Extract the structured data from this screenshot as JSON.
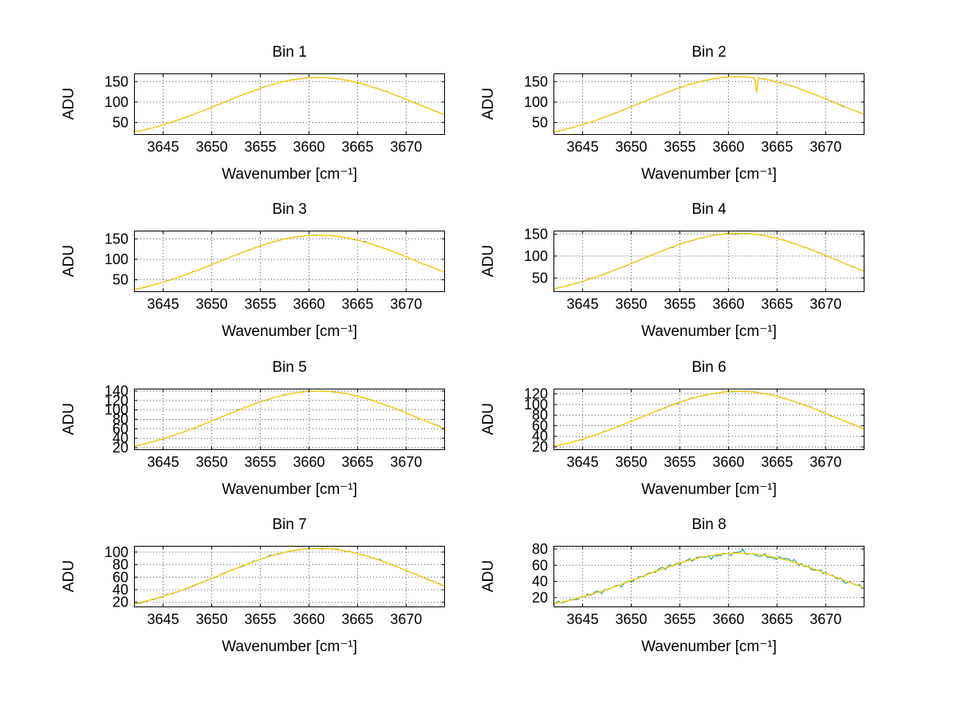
{
  "figure": {
    "background": "#ffffff"
  },
  "chart_data": {
    "type": "line",
    "layout": "4x2-grid",
    "shared": {
      "xlabel": "Wavenumber [cm⁻¹]",
      "ylabel": "ADU",
      "xlim": [
        3642,
        3674
      ],
      "xticks": [
        3645,
        3650,
        3655,
        3660,
        3665,
        3670
      ],
      "grid": true,
      "grid_color": "#555555",
      "axis_color": "#000000",
      "series_styles": [
        {
          "name": "measured-spectrum",
          "color": "#0d9488"
        },
        {
          "name": "smooth-overlay",
          "color": "#fdca01"
        }
      ],
      "x": [
        3642,
        3643,
        3644,
        3645,
        3646,
        3647,
        3648,
        3649,
        3650,
        3651,
        3652,
        3653,
        3654,
        3655,
        3656,
        3657,
        3658,
        3659,
        3660,
        3661,
        3662,
        3663,
        3664,
        3665,
        3666,
        3667,
        3668,
        3669,
        3670,
        3671,
        3672,
        3673,
        3674
      ]
    },
    "subplots": [
      {
        "title": "Bin 1",
        "ylim": [
          20,
          170
        ],
        "yticks": [
          50,
          100,
          150
        ],
        "noise": 0.8,
        "y": [
          26.3,
          31.7,
          37.7,
          44.5,
          52.0,
          60.0,
          68.7,
          77.9,
          87.4,
          97.0,
          106.7,
          116.2,
          125.2,
          133.6,
          141.2,
          147.7,
          153.0,
          156.8,
          159.2,
          160.0,
          159.2,
          156.8,
          153.0,
          147.7,
          141.2,
          133.6,
          125.2,
          116.2,
          106.7,
          97.0,
          87.4,
          77.9,
          68.7
        ]
      },
      {
        "title": "Bin 2",
        "ylim": [
          20,
          170
        ],
        "yticks": [
          50,
          100,
          150
        ],
        "noise": 0.8,
        "x": [
          3642,
          3643,
          3644,
          3645,
          3646,
          3647,
          3648,
          3649,
          3650,
          3651,
          3652,
          3653,
          3654,
          3655,
          3656,
          3657,
          3658,
          3659,
          3660,
          3661,
          3662,
          3662.7,
          3662.9,
          3663.1,
          3664,
          3665,
          3666,
          3667,
          3668,
          3669,
          3670,
          3671,
          3672,
          3673,
          3674
        ],
        "y": [
          26.6,
          32.1,
          38.2,
          45.1,
          52.6,
          60.8,
          69.6,
          78.9,
          88.5,
          98.2,
          108.0,
          117.7,
          126.8,
          135.3,
          143.0,
          149.5,
          154.9,
          158.8,
          161.2,
          162.0,
          161.2,
          159.5,
          123.0,
          158.5,
          154.9,
          149.5,
          143.0,
          135.3,
          126.8,
          117.7,
          108.0,
          98.2,
          88.5,
          78.9,
          69.6
        ]
      },
      {
        "title": "Bin 3",
        "ylim": [
          20,
          170
        ],
        "yticks": [
          50,
          100,
          150
        ],
        "noise": 0.8,
        "y": [
          26.2,
          31.5,
          37.5,
          44.2,
          51.6,
          59.7,
          68.3,
          77.4,
          86.8,
          96.4,
          106.0,
          115.5,
          124.4,
          132.8,
          140.3,
          146.8,
          152.0,
          155.8,
          158.2,
          159.0,
          158.2,
          155.8,
          152.0,
          146.8,
          140.3,
          132.8,
          124.4,
          115.5,
          106.0,
          96.4,
          86.8,
          77.4,
          68.3
        ]
      },
      {
        "title": "Bin 4",
        "ylim": [
          18,
          158
        ],
        "yticks": [
          50,
          100,
          150
        ],
        "noise": 0.8,
        "y": [
          25.0,
          30.1,
          35.8,
          42.3,
          49.4,
          57.0,
          65.3,
          74.0,
          83.0,
          92.2,
          101.4,
          110.4,
          119.0,
          126.9,
          134.1,
          140.3,
          145.3,
          149.0,
          151.2,
          152.0,
          151.2,
          149.0,
          145.3,
          140.3,
          134.1,
          126.9,
          119.0,
          110.4,
          101.4,
          92.2,
          83.0,
          74.0,
          65.3
        ]
      },
      {
        "title": "Bin 5",
        "ylim": [
          15,
          145
        ],
        "yticks": [
          20,
          40,
          60,
          80,
          100,
          120,
          140
        ],
        "noise": 0.8,
        "y": [
          23.0,
          27.7,
          33.0,
          38.9,
          45.5,
          52.5,
          60.1,
          68.2,
          76.5,
          84.9,
          93.4,
          101.7,
          109.6,
          116.9,
          123.6,
          129.2,
          133.8,
          137.2,
          139.3,
          140.0,
          139.3,
          137.2,
          133.8,
          129.2,
          123.6,
          116.9,
          109.6,
          101.7,
          93.4,
          84.9,
          76.5,
          68.2,
          60.1
        ]
      },
      {
        "title": "Bin 6",
        "ylim": [
          14,
          130
        ],
        "yticks": [
          20,
          40,
          60,
          80,
          100,
          120
        ],
        "noise": 0.8,
        "y": [
          20.6,
          24.8,
          29.5,
          34.8,
          40.6,
          46.9,
          53.7,
          60.9,
          68.3,
          75.8,
          83.4,
          90.8,
          97.8,
          104.4,
          110.3,
          115.4,
          119.5,
          122.5,
          124.4,
          125.0,
          124.4,
          122.5,
          119.5,
          115.4,
          110.3,
          104.4,
          97.8,
          90.8,
          83.4,
          75.8,
          68.3,
          60.9,
          53.7
        ]
      },
      {
        "title": "Bin 7",
        "ylim": [
          12,
          110
        ],
        "yticks": [
          20,
          40,
          60,
          80,
          100
        ],
        "noise": 0.8,
        "y": [
          17.4,
          21.0,
          25.0,
          29.5,
          34.4,
          39.8,
          45.5,
          51.6,
          57.9,
          64.3,
          70.7,
          77.0,
          83.0,
          88.5,
          93.5,
          97.8,
          101.3,
          103.9,
          105.5,
          106.0,
          105.5,
          103.9,
          101.3,
          97.8,
          93.5,
          88.5,
          83.0,
          77.0,
          70.7,
          64.3,
          57.9,
          51.6,
          45.5
        ]
      },
      {
        "title": "Bin 8",
        "ylim": [
          8,
          84
        ],
        "yticks": [
          20,
          40,
          60,
          80
        ],
        "noise": 2.2,
        "y": [
          12.3,
          14.8,
          17.7,
          20.9,
          24.4,
          28.1,
          32.2,
          36.5,
          41.0,
          45.5,
          50.0,
          54.5,
          58.7,
          62.6,
          66.2,
          69.2,
          71.7,
          73.5,
          74.6,
          75.0,
          74.6,
          73.5,
          71.7,
          69.2,
          66.2,
          62.6,
          58.7,
          54.5,
          50.0,
          45.5,
          41.0,
          36.5,
          32.2
        ]
      }
    ]
  }
}
